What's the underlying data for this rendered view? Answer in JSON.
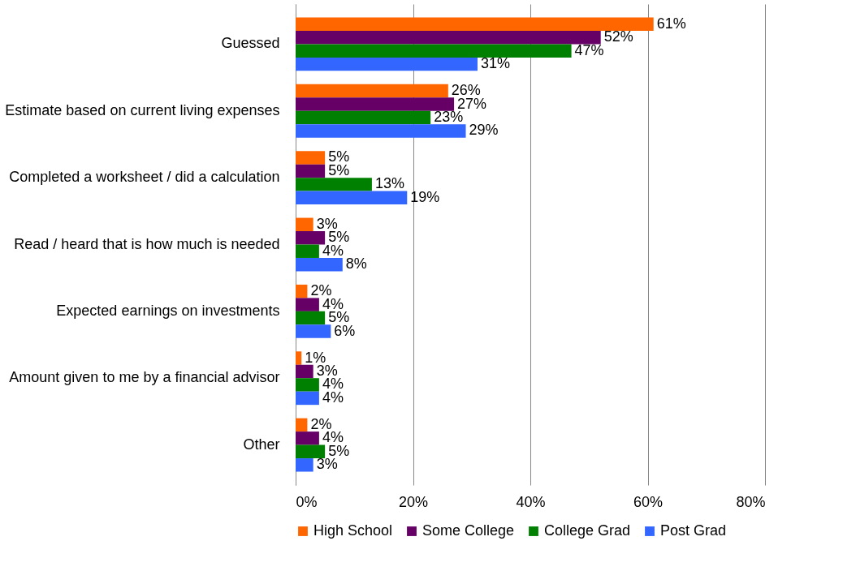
{
  "chart_data": {
    "type": "bar",
    "orientation": "horizontal",
    "categories": [
      "Guessed",
      "Estimate based on current living expenses",
      "Completed a worksheet / did a calculation",
      "Read / heard that is how much is needed",
      "Expected earnings on investments",
      "Amount given to me by a financial advisor",
      "Other"
    ],
    "series": [
      {
        "name": "High School",
        "color": "#ff6600",
        "values": [
          61,
          26,
          5,
          3,
          2,
          1,
          2
        ],
        "value_labels": [
          "61%",
          "26%",
          "5%",
          "3%",
          "2%",
          "1%",
          "2%"
        ]
      },
      {
        "name": "Some College",
        "color": "#660066",
        "values": [
          52,
          27,
          5,
          5,
          4,
          3,
          4
        ],
        "value_labels": [
          "52%",
          "27%",
          "5%",
          "5%",
          "4%",
          "3%",
          "4%"
        ]
      },
      {
        "name": "College Grad",
        "color": "#008000",
        "values": [
          47,
          23,
          13,
          4,
          5,
          4,
          5
        ],
        "value_labels": [
          "47%",
          "23%",
          "13%",
          "4%",
          "5%",
          "4%",
          "5%"
        ]
      },
      {
        "name": "Post Grad",
        "color": "#3366ff",
        "values": [
          31,
          29,
          19,
          8,
          6,
          4,
          3
        ],
        "value_labels": [
          "31%",
          "29%",
          "19%",
          "8%",
          "6%",
          "4%",
          "3%"
        ]
      }
    ],
    "xlim": [
      0,
      80
    ],
    "xticks": [
      {
        "value": 0,
        "label": "0%"
      },
      {
        "value": 20,
        "label": "20%"
      },
      {
        "value": 40,
        "label": "40%"
      },
      {
        "value": 60,
        "label": "60%"
      },
      {
        "value": 80,
        "label": "80%"
      }
    ],
    "grid": "x",
    "legend": "bottom"
  }
}
